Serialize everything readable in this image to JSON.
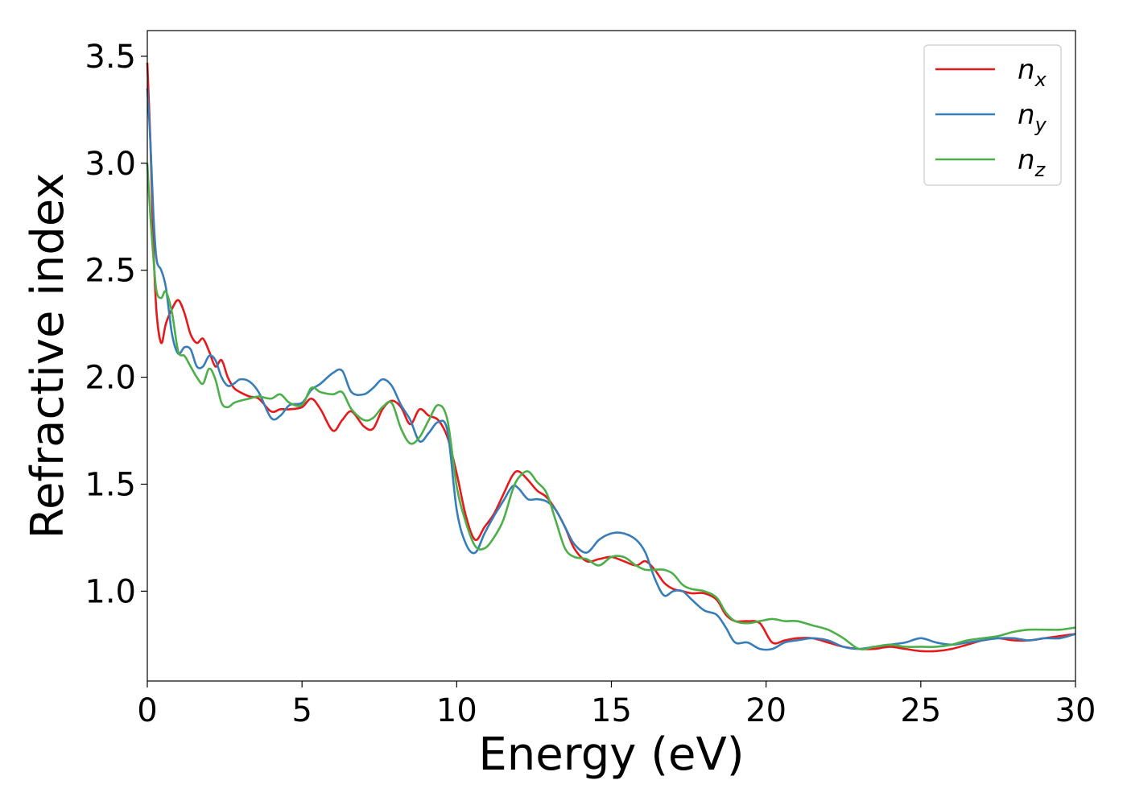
{
  "chart_data": {
    "type": "line",
    "title": "",
    "xlabel": "Energy (eV)",
    "ylabel": "Refractive index",
    "xlim": [
      0,
      30
    ],
    "ylim": [
      0.58,
      3.62
    ],
    "xticks": [
      0,
      5,
      10,
      15,
      20,
      25,
      30
    ],
    "xtick_labels": [
      "0",
      "5",
      "10",
      "15",
      "20",
      "25",
      "30"
    ],
    "yticks": [
      1.0,
      1.5,
      2.0,
      2.5,
      3.0,
      3.5
    ],
    "ytick_labels": [
      "1.0",
      "1.5",
      "2.0",
      "2.5",
      "3.0",
      "3.5"
    ],
    "grid": false,
    "legend_position": "top-right",
    "series": [
      {
        "name": "n_x",
        "legend_main": "n",
        "legend_sub": "x",
        "color": "#e41a1c",
        "x": [
          0,
          0.1,
          0.2,
          0.3,
          0.45,
          0.6,
          0.8,
          1.0,
          1.2,
          1.4,
          1.6,
          1.8,
          2.0,
          2.2,
          2.4,
          2.6,
          2.8,
          3.0,
          3.3,
          3.6,
          4.0,
          4.3,
          4.6,
          5.0,
          5.3,
          5.6,
          6.0,
          6.3,
          6.6,
          7.0,
          7.3,
          7.6,
          7.9,
          8.2,
          8.5,
          8.8,
          9.1,
          9.4,
          9.7,
          10.0,
          10.3,
          10.6,
          10.9,
          11.2,
          11.5,
          11.8,
          12.0,
          12.3,
          12.6,
          12.9,
          13.2,
          13.5,
          13.8,
          14.2,
          14.6,
          15.0,
          15.4,
          15.8,
          16.1,
          16.4,
          16.7,
          17.0,
          17.3,
          17.6,
          18.0,
          18.4,
          18.7,
          19.0,
          19.4,
          19.8,
          20.2,
          20.6,
          21.0,
          21.5,
          22.0,
          22.5,
          23.0,
          23.5,
          24.0,
          24.5,
          25.0,
          25.5,
          26.0,
          26.5,
          27.0,
          27.5,
          28.0,
          28.5,
          29.0,
          29.5,
          30.0
        ],
        "values": [
          3.47,
          3.1,
          2.6,
          2.3,
          2.16,
          2.25,
          2.32,
          2.36,
          2.3,
          2.2,
          2.16,
          2.18,
          2.12,
          2.05,
          2.08,
          2.0,
          1.95,
          1.93,
          1.91,
          1.9,
          1.84,
          1.85,
          1.85,
          1.86,
          1.9,
          1.85,
          1.75,
          1.8,
          1.84,
          1.77,
          1.76,
          1.85,
          1.89,
          1.86,
          1.78,
          1.85,
          1.82,
          1.8,
          1.72,
          1.55,
          1.35,
          1.24,
          1.3,
          1.36,
          1.45,
          1.54,
          1.56,
          1.52,
          1.47,
          1.44,
          1.38,
          1.3,
          1.2,
          1.14,
          1.15,
          1.16,
          1.14,
          1.12,
          1.14,
          1.1,
          1.04,
          1.01,
          1.0,
          0.99,
          0.99,
          0.96,
          0.89,
          0.86,
          0.86,
          0.85,
          0.76,
          0.77,
          0.78,
          0.78,
          0.76,
          0.74,
          0.73,
          0.73,
          0.74,
          0.73,
          0.72,
          0.72,
          0.73,
          0.75,
          0.77,
          0.78,
          0.77,
          0.77,
          0.78,
          0.79,
          0.8
        ]
      },
      {
        "name": "n_y",
        "legend_main": "n",
        "legend_sub": "y",
        "color": "#377eb8",
        "x": [
          0,
          0.1,
          0.2,
          0.3,
          0.45,
          0.6,
          0.8,
          1.0,
          1.2,
          1.4,
          1.6,
          1.8,
          2.0,
          2.2,
          2.4,
          2.6,
          2.8,
          3.0,
          3.3,
          3.6,
          4.0,
          4.3,
          4.6,
          5.0,
          5.3,
          5.6,
          6.0,
          6.3,
          6.6,
          7.0,
          7.3,
          7.6,
          7.9,
          8.2,
          8.5,
          8.8,
          9.1,
          9.4,
          9.7,
          10.0,
          10.3,
          10.6,
          10.9,
          11.2,
          11.5,
          11.8,
          12.0,
          12.3,
          12.6,
          12.9,
          13.2,
          13.5,
          13.8,
          14.2,
          14.6,
          15.0,
          15.4,
          15.8,
          16.1,
          16.4,
          16.7,
          17.0,
          17.3,
          17.6,
          18.0,
          18.4,
          18.7,
          19.0,
          19.4,
          19.8,
          20.2,
          20.6,
          21.0,
          21.5,
          22.0,
          22.5,
          23.0,
          23.5,
          24.0,
          24.5,
          25.0,
          25.5,
          26.0,
          26.5,
          27.0,
          27.5,
          28.0,
          28.5,
          29.0,
          29.5,
          30.0
        ],
        "values": [
          3.35,
          3.1,
          2.75,
          2.55,
          2.5,
          2.42,
          2.2,
          2.11,
          2.14,
          2.13,
          2.05,
          2.05,
          2.1,
          2.08,
          2.0,
          1.96,
          1.97,
          1.99,
          1.98,
          1.93,
          1.81,
          1.82,
          1.87,
          1.88,
          1.94,
          1.97,
          2.02,
          2.03,
          1.93,
          1.92,
          1.95,
          1.99,
          1.96,
          1.87,
          1.8,
          1.7,
          1.74,
          1.79,
          1.75,
          1.38,
          1.22,
          1.18,
          1.27,
          1.35,
          1.42,
          1.49,
          1.48,
          1.43,
          1.43,
          1.42,
          1.38,
          1.3,
          1.22,
          1.18,
          1.24,
          1.27,
          1.27,
          1.24,
          1.18,
          1.06,
          0.98,
          1.0,
          1.0,
          0.96,
          0.91,
          0.89,
          0.83,
          0.76,
          0.76,
          0.73,
          0.73,
          0.76,
          0.77,
          0.78,
          0.77,
          0.74,
          0.73,
          0.74,
          0.75,
          0.76,
          0.78,
          0.76,
          0.75,
          0.76,
          0.77,
          0.78,
          0.78,
          0.77,
          0.78,
          0.78,
          0.8
        ]
      },
      {
        "name": "n_z",
        "legend_main": "n",
        "legend_sub": "z",
        "color": "#4daf4a",
        "x": [
          0,
          0.1,
          0.2,
          0.3,
          0.45,
          0.6,
          0.8,
          1.0,
          1.2,
          1.4,
          1.6,
          1.8,
          2.0,
          2.2,
          2.4,
          2.6,
          2.8,
          3.0,
          3.3,
          3.6,
          4.0,
          4.3,
          4.6,
          5.0,
          5.3,
          5.6,
          6.0,
          6.3,
          6.6,
          7.0,
          7.3,
          7.6,
          7.9,
          8.2,
          8.5,
          8.8,
          9.1,
          9.4,
          9.7,
          10.0,
          10.3,
          10.6,
          10.9,
          11.2,
          11.5,
          11.8,
          12.0,
          12.3,
          12.6,
          12.9,
          13.2,
          13.5,
          13.8,
          14.2,
          14.6,
          15.0,
          15.4,
          15.8,
          16.1,
          16.4,
          16.7,
          17.0,
          17.3,
          17.6,
          18.0,
          18.4,
          18.7,
          19.0,
          19.4,
          19.8,
          20.2,
          20.6,
          21.0,
          21.5,
          22.0,
          22.5,
          23.0,
          23.5,
          24.0,
          24.5,
          25.0,
          25.5,
          26.0,
          26.5,
          27.0,
          27.5,
          28.0,
          28.5,
          29.0,
          29.5,
          30.0
        ],
        "values": [
          3.0,
          2.75,
          2.55,
          2.4,
          2.37,
          2.4,
          2.3,
          2.12,
          2.1,
          2.05,
          2.0,
          1.97,
          2.04,
          1.99,
          1.88,
          1.86,
          1.88,
          1.89,
          1.9,
          1.91,
          1.9,
          1.92,
          1.88,
          1.87,
          1.95,
          1.93,
          1.92,
          1.93,
          1.85,
          1.8,
          1.81,
          1.86,
          1.88,
          1.76,
          1.69,
          1.72,
          1.8,
          1.87,
          1.8,
          1.49,
          1.32,
          1.21,
          1.2,
          1.25,
          1.33,
          1.47,
          1.53,
          1.56,
          1.51,
          1.46,
          1.33,
          1.2,
          1.16,
          1.15,
          1.12,
          1.16,
          1.16,
          1.12,
          1.1,
          1.1,
          1.1,
          1.08,
          1.03,
          1.01,
          1.0,
          0.97,
          0.9,
          0.86,
          0.85,
          0.86,
          0.87,
          0.86,
          0.86,
          0.84,
          0.82,
          0.78,
          0.73,
          0.74,
          0.75,
          0.74,
          0.74,
          0.74,
          0.75,
          0.77,
          0.78,
          0.79,
          0.81,
          0.82,
          0.82,
          0.82,
          0.83
        ]
      }
    ]
  }
}
